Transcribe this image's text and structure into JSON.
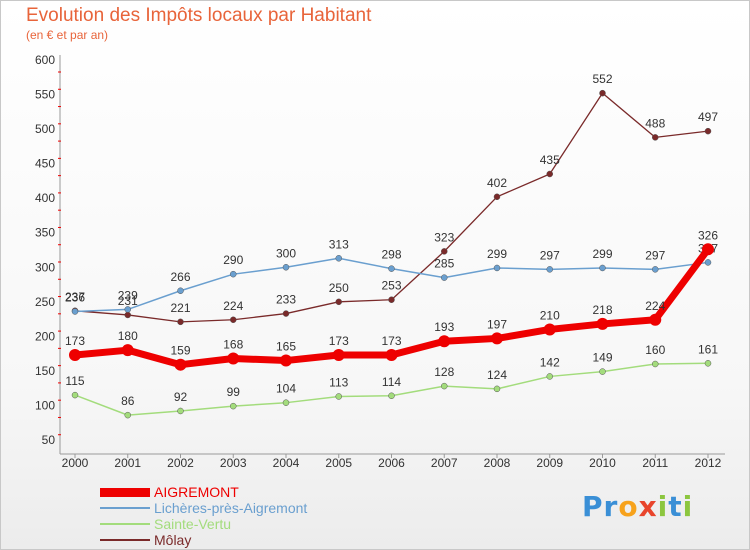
{
  "title": "Evolution des Impôts locaux par Habitant",
  "subtitle": "(en € et par an)",
  "logo": {
    "text": "Proxiti",
    "letters": [
      "P",
      "r",
      "o",
      "x",
      "i",
      "t",
      "i"
    ],
    "letter_colors": [
      "#3a8fd6",
      "#3a8fd6",
      "#f7a21b",
      "#e8452c",
      "#8cc63f",
      "#3a8fd6",
      "#8cc63f"
    ]
  },
  "chart_data": {
    "type": "line",
    "title": "Evolution des Impôts locaux par Habitant",
    "subtitle": "(en € et par an)",
    "xlabel": "",
    "ylabel": "",
    "categories": [
      "2000",
      "2001",
      "2002",
      "2003",
      "2004",
      "2005",
      "2006",
      "2007",
      "2008",
      "2009",
      "2010",
      "2011",
      "2012"
    ],
    "ylim": [
      50,
      600
    ],
    "yticks": [
      50,
      100,
      150,
      200,
      250,
      300,
      350,
      400,
      450,
      500,
      550,
      600
    ],
    "grid": false,
    "legend_position": "bottom-left",
    "series": [
      {
        "name": "Môlay",
        "color": "#7a2a2a",
        "width": 1.3,
        "values": [
          237,
          231,
          221,
          224,
          233,
          250,
          253,
          323,
          402,
          435,
          552,
          488,
          497
        ],
        "labels": [
          "237",
          "231",
          "221",
          "224",
          "233",
          "250",
          "253",
          "323",
          "402",
          "435",
          "552",
          "488",
          "497"
        ]
      },
      {
        "name": "Lichères-près-Aigremont",
        "color": "#6a9fcf",
        "width": 1.5,
        "values": [
          236,
          239,
          266,
          290,
          300,
          313,
          298,
          285,
          299,
          297,
          299,
          297,
          307
        ],
        "labels": [
          "236",
          "239",
          "266",
          "290",
          "300",
          "313",
          "298",
          "285",
          "299",
          "297",
          "299",
          "297",
          "307"
        ]
      },
      {
        "name": "Sainte-Vertu",
        "color": "#a3dc7c",
        "width": 1.5,
        "values": [
          115,
          86,
          92,
          99,
          104,
          113,
          114,
          128,
          124,
          142,
          149,
          160,
          161
        ],
        "labels": [
          "115",
          "86",
          "92",
          "99",
          "104",
          "113",
          "114",
          "128",
          "124",
          "142",
          "149",
          "160",
          "161"
        ]
      },
      {
        "name": "AIGREMONT",
        "color": "#ee0000",
        "width": 7,
        "values": [
          173,
          180,
          159,
          168,
          165,
          173,
          173,
          193,
          197,
          210,
          218,
          224,
          326
        ],
        "labels": [
          "173",
          "180",
          "159",
          "168",
          "165",
          "173",
          "173",
          "193",
          "197",
          "210",
          "218",
          "224",
          "326"
        ]
      }
    ],
    "legend": [
      {
        "name": "AIGREMONT",
        "color": "#ee0000",
        "thick": 9
      },
      {
        "name": "Lichères-près-Aigremont",
        "color": "#6a9fcf",
        "thick": 2
      },
      {
        "name": "Sainte-Vertu",
        "color": "#a3dc7c",
        "thick": 2
      },
      {
        "name": "Môlay",
        "color": "#7a2a2a",
        "thick": 2
      }
    ],
    "axis_color": "#999999",
    "tick_mark_color": "#ee0000",
    "text_color": "#333333"
  }
}
